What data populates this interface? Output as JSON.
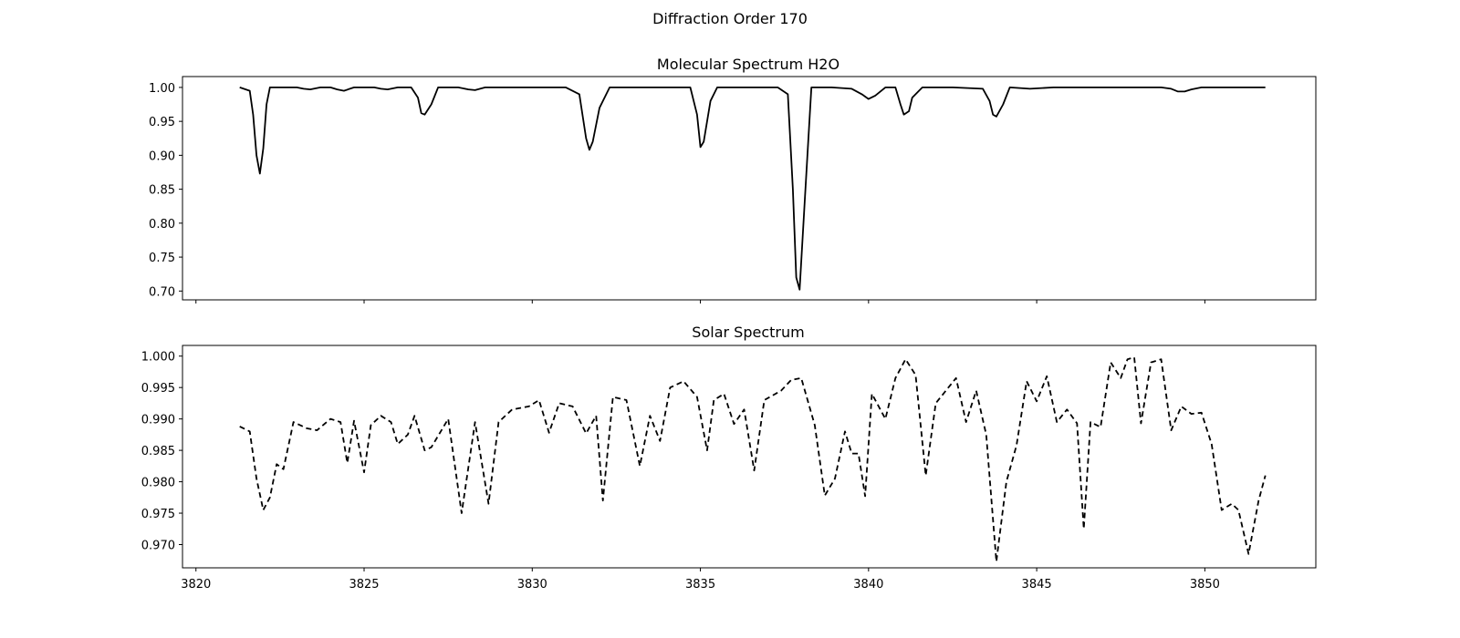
{
  "figure": {
    "title": "Diffraction Order 170"
  },
  "chart_data": [
    {
      "type": "line",
      "title": "Molecular Spectrum H2O",
      "xlabel": "",
      "ylabel": "",
      "xlim": [
        3819.6,
        3853.3
      ],
      "ylim": [
        0.687,
        1.016
      ],
      "x_ticks": [
        3820,
        3825,
        3830,
        3835,
        3840,
        3845,
        3850
      ],
      "x_tick_labels_shown": false,
      "y_ticks": [
        0.7,
        0.75,
        0.8,
        0.85,
        0.9,
        0.95,
        1.0
      ],
      "y_tick_labels": [
        "0.70",
        "0.75",
        "0.80",
        "0.85",
        "0.90",
        "0.95",
        "1.00"
      ],
      "line_style": "solid",
      "line_color": "#000000",
      "grid": false,
      "series": [
        {
          "x": [
            3821.3,
            3821.6,
            3821.7,
            3821.8,
            3821.9,
            3822.0,
            3822.1,
            3822.2,
            3823.0,
            3823.2,
            3823.4,
            3823.7,
            3824.0,
            3824.2,
            3824.4,
            3824.7,
            3825.0,
            3825.3,
            3825.5,
            3825.7,
            3826.0,
            3826.4,
            3826.6,
            3826.7,
            3826.8,
            3827.0,
            3827.2,
            3827.8,
            3828.1,
            3828.3,
            3828.6,
            3829.5,
            3831.0,
            3831.4,
            3831.6,
            3831.7,
            3831.8,
            3832.0,
            3832.3,
            3834.0,
            3834.7,
            3834.9,
            3835.0,
            3835.1,
            3835.3,
            3835.5,
            3836.0,
            3837.3,
            3837.6,
            3837.75,
            3837.85,
            3837.95,
            3838.1,
            3838.3,
            3838.9,
            3839.5,
            3839.8,
            3840.0,
            3840.2,
            3840.5,
            3840.8,
            3840.95,
            3841.05,
            3841.2,
            3841.3,
            3841.6,
            3842.5,
            3843.4,
            3843.6,
            3843.7,
            3843.8,
            3844.0,
            3844.2,
            3844.8,
            3845.5,
            3846.5,
            3847.5,
            3848.7,
            3849.0,
            3849.2,
            3849.4,
            3849.6,
            3849.9,
            3850.5,
            3851.8
          ],
          "y": [
            1.0,
            0.995,
            0.96,
            0.9,
            0.873,
            0.91,
            0.975,
            1.0,
            1.0,
            0.998,
            0.997,
            1.0,
            1.0,
            0.997,
            0.995,
            1.0,
            1.0,
            1.0,
            0.998,
            0.997,
            1.0,
            1.0,
            0.985,
            0.962,
            0.96,
            0.975,
            1.0,
            1.0,
            0.997,
            0.996,
            1.0,
            1.0,
            1.0,
            0.99,
            0.925,
            0.908,
            0.92,
            0.97,
            1.0,
            1.0,
            1.0,
            0.96,
            0.912,
            0.92,
            0.98,
            1.0,
            1.0,
            1.0,
            0.99,
            0.85,
            0.72,
            0.702,
            0.83,
            1.0,
            1.0,
            0.998,
            0.99,
            0.983,
            0.988,
            1.0,
            1.0,
            0.975,
            0.96,
            0.965,
            0.985,
            1.0,
            1.0,
            0.998,
            0.98,
            0.96,
            0.957,
            0.975,
            1.0,
            0.998,
            1.0,
            1.0,
            1.0,
            1.0,
            0.998,
            0.994,
            0.994,
            0.997,
            1.0,
            1.0,
            1.0
          ]
        }
      ]
    },
    {
      "type": "line",
      "title": "Solar Spectrum",
      "xlabel": "",
      "ylabel": "",
      "xlim": [
        3819.6,
        3853.3
      ],
      "ylim": [
        0.9663,
        1.0017
      ],
      "x_ticks": [
        3820,
        3825,
        3830,
        3835,
        3840,
        3845,
        3850
      ],
      "x_tick_labels": [
        "3820",
        "3825",
        "3830",
        "3835",
        "3840",
        "3845",
        "3850"
      ],
      "y_ticks": [
        0.97,
        0.975,
        0.98,
        0.985,
        0.99,
        0.995,
        1.0
      ],
      "y_tick_labels": [
        "0.970",
        "0.975",
        "0.980",
        "0.985",
        "0.990",
        "0.995",
        "1.000"
      ],
      "line_style": "dashed",
      "line_color": "#000000",
      "grid": false,
      "series": [
        {
          "x": [
            3821.3,
            3821.6,
            3821.8,
            3822.0,
            3822.2,
            3822.4,
            3822.6,
            3822.9,
            3823.3,
            3823.6,
            3824.0,
            3824.3,
            3824.5,
            3824.7,
            3825.0,
            3825.2,
            3825.5,
            3825.8,
            3826.0,
            3826.3,
            3826.5,
            3826.8,
            3827.0,
            3827.5,
            3827.9,
            3828.3,
            3828.7,
            3829.0,
            3829.4,
            3829.9,
            3830.2,
            3830.5,
            3830.8,
            3831.2,
            3831.6,
            3831.9,
            3832.1,
            3832.4,
            3832.8,
            3833.2,
            3833.5,
            3833.8,
            3834.1,
            3834.5,
            3834.9,
            3835.2,
            3835.4,
            3835.7,
            3836.0,
            3836.3,
            3836.6,
            3836.9,
            3837.4,
            3837.7,
            3838.0,
            3838.4,
            3838.7,
            3839.0,
            3839.3,
            3839.5,
            3839.7,
            3839.9,
            3840.1,
            3840.5,
            3840.8,
            3841.1,
            3841.4,
            3841.7,
            3842.0,
            3842.3,
            3842.6,
            3842.9,
            3843.2,
            3843.5,
            3843.8,
            3844.1,
            3844.4,
            3844.7,
            3845.0,
            3845.3,
            3845.6,
            3845.9,
            3846.2,
            3846.4,
            3846.6,
            3846.9,
            3847.2,
            3847.5,
            3847.7,
            3847.9,
            3848.1,
            3848.4,
            3848.7,
            3849.0,
            3849.3,
            3849.6,
            3849.9,
            3850.2,
            3850.5,
            3850.8,
            3851.0,
            3851.3,
            3851.6,
            3851.8
          ],
          "y": [
            0.9888,
            0.988,
            0.9805,
            0.9755,
            0.9775,
            0.9828,
            0.982,
            0.9895,
            0.9885,
            0.9882,
            0.99,
            0.9895,
            0.983,
            0.9897,
            0.9815,
            0.989,
            0.9905,
            0.9895,
            0.986,
            0.9875,
            0.9905,
            0.985,
            0.9855,
            0.99,
            0.975,
            0.9895,
            0.9765,
            0.9895,
            0.9915,
            0.992,
            0.993,
            0.9878,
            0.9925,
            0.992,
            0.9877,
            0.9905,
            0.977,
            0.9935,
            0.993,
            0.9825,
            0.9905,
            0.9865,
            0.995,
            0.996,
            0.9935,
            0.985,
            0.993,
            0.994,
            0.9892,
            0.9915,
            0.9818,
            0.993,
            0.9945,
            0.9962,
            0.9965,
            0.989,
            0.9778,
            0.9805,
            0.988,
            0.9845,
            0.9845,
            0.9777,
            0.994,
            0.99,
            0.9965,
            0.9995,
            0.997,
            0.981,
            0.9925,
            0.9945,
            0.9965,
            0.9895,
            0.9945,
            0.9875,
            0.9673,
            0.98,
            0.9858,
            0.996,
            0.9928,
            0.9968,
            0.9895,
            0.9915,
            0.9893,
            0.9725,
            0.9895,
            0.9887,
            0.999,
            0.9965,
            0.9995,
            0.9998,
            0.9893,
            0.999,
            0.9995,
            0.9882,
            0.992,
            0.9908,
            0.991,
            0.986,
            0.9755,
            0.9765,
            0.9755,
            0.9685,
            0.977,
            0.981
          ]
        }
      ]
    }
  ]
}
